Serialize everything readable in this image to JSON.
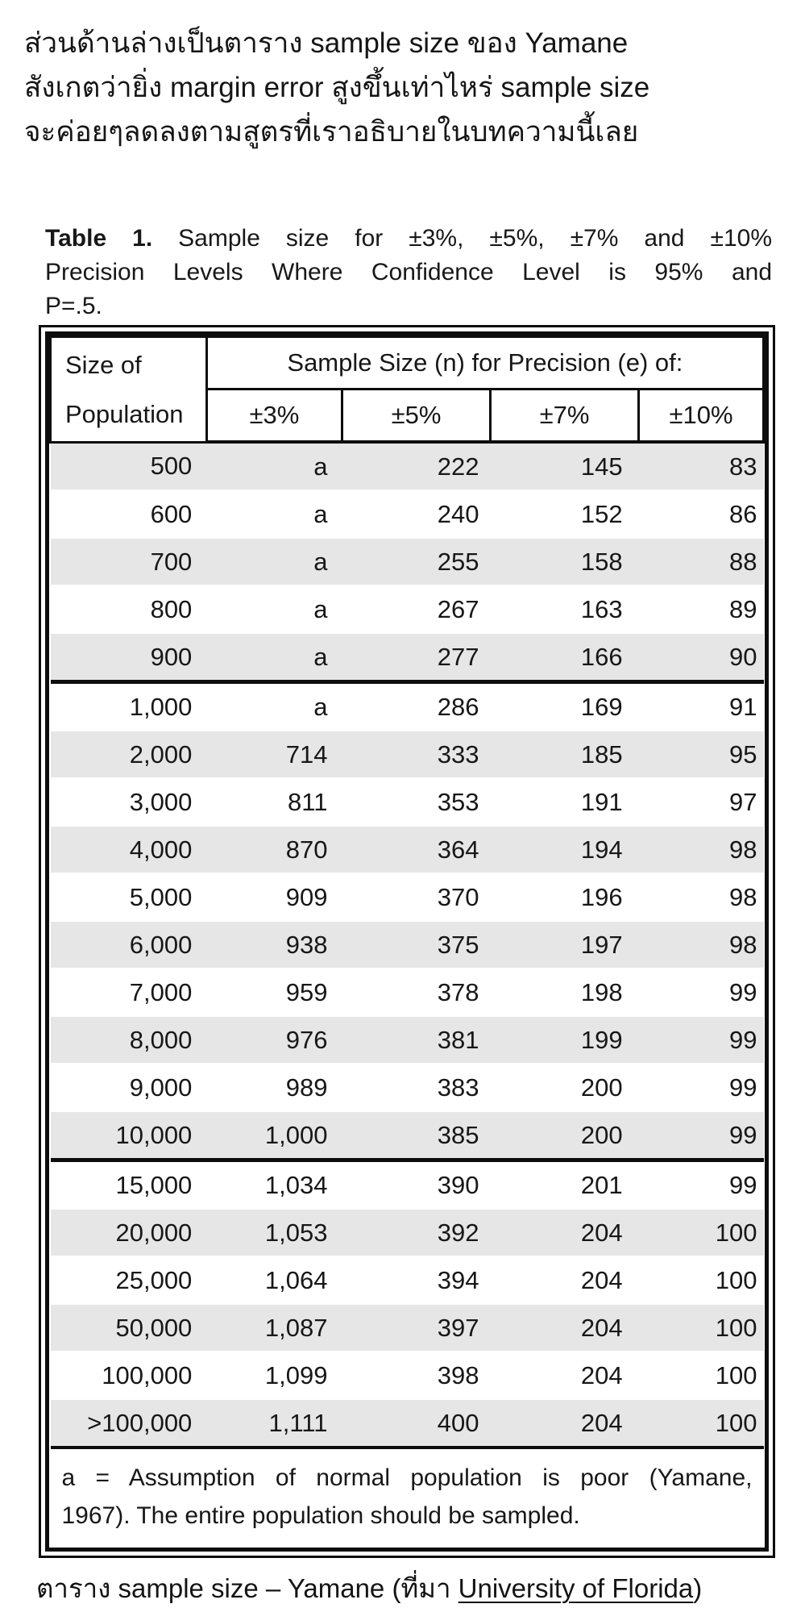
{
  "intro": {
    "lines": [
      "ส่วนด้านล่างเป็นตาราง sample size ของ Yamane",
      "สังเกตว่ายิ่ง margin error สูงขึ้นเท่าไหร่ sample size",
      "จะค่อยๆลดลงตามสูตรที่เราอธิบายในบทความนี้เลย"
    ]
  },
  "table": {
    "title": {
      "bold": "Table 1.",
      "line1_rest": "  Sample size for ±3%, ±5%, ±7% and ±10%",
      "line2": "Precision Levels Where Confidence Level is 95% and",
      "line3": "P=.5."
    },
    "header": {
      "row_label_line1": "Size of",
      "row_label_line2": "Population",
      "span_label": "Sample Size (n) for Precision (e) of:",
      "precision_labels": [
        "±3%",
        "±5%",
        "±7%",
        "±10%"
      ]
    },
    "groups": [
      [
        [
          "500",
          "a",
          "222",
          "145",
          "83"
        ],
        [
          "600",
          "a",
          "240",
          "152",
          "86"
        ],
        [
          "700",
          "a",
          "255",
          "158",
          "88"
        ],
        [
          "800",
          "a",
          "267",
          "163",
          "89"
        ],
        [
          "900",
          "a",
          "277",
          "166",
          "90"
        ]
      ],
      [
        [
          "1,000",
          "a",
          "286",
          "169",
          "91"
        ],
        [
          "2,000",
          "714",
          "333",
          "185",
          "95"
        ],
        [
          "3,000",
          "811",
          "353",
          "191",
          "97"
        ],
        [
          "4,000",
          "870",
          "364",
          "194",
          "98"
        ],
        [
          "5,000",
          "909",
          "370",
          "196",
          "98"
        ],
        [
          "6,000",
          "938",
          "375",
          "197",
          "98"
        ],
        [
          "7,000",
          "959",
          "378",
          "198",
          "99"
        ],
        [
          "8,000",
          "976",
          "381",
          "199",
          "99"
        ],
        [
          "9,000",
          "989",
          "383",
          "200",
          "99"
        ],
        [
          "10,000",
          "1,000",
          "385",
          "200",
          "99"
        ]
      ],
      [
        [
          "15,000",
          "1,034",
          "390",
          "201",
          "99"
        ],
        [
          "20,000",
          "1,053",
          "392",
          "204",
          "100"
        ],
        [
          "25,000",
          "1,064",
          "394",
          "204",
          "100"
        ],
        [
          "50,000",
          "1,087",
          "397",
          "204",
          "100"
        ],
        [
          "100,000",
          "1,099",
          "398",
          "204",
          "100"
        ],
        [
          ">100,000",
          "1,111",
          "400",
          "204",
          "100"
        ]
      ]
    ],
    "footnote_line1": "a = Assumption of normal population is poor (Yamane,",
    "footnote_line2": "1967).  The entire population should be sampled."
  },
  "caption": {
    "prefix": "ตาราง sample size – Yamane (ที่มา ",
    "link_text": "University of Florida",
    "suffix": ")"
  },
  "colors": {
    "stripe": "#e6e6e6",
    "border": "#0d0d0d",
    "text": "#171717"
  }
}
